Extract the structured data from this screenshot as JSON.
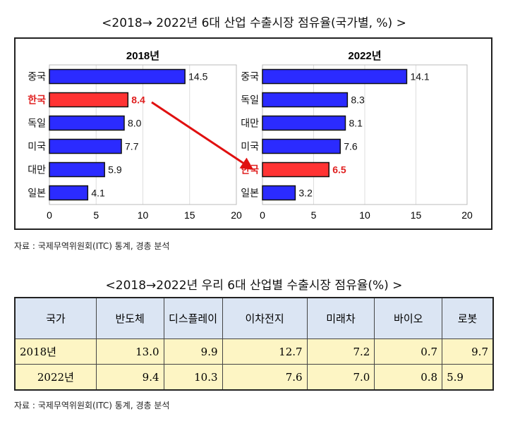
{
  "title": "<2018→ 2022년 6대 산업 수출시장 점유율(국가별, %) >",
  "chart_data": [
    {
      "type": "bar",
      "orientation": "horizontal",
      "title": "2018년",
      "categories": [
        "중국",
        "한국",
        "독일",
        "미국",
        "대만",
        "일본"
      ],
      "values": [
        14.5,
        8.4,
        8.0,
        7.7,
        5.9,
        4.1
      ],
      "highlight": "한국",
      "xlim": [
        0,
        20
      ],
      "xticks": [
        "0",
        "5",
        "10",
        "15",
        "20"
      ],
      "grid": true
    },
    {
      "type": "bar",
      "orientation": "horizontal",
      "title": "2022년",
      "categories": [
        "중국",
        "독일",
        "대만",
        "미국",
        "한국",
        "일본"
      ],
      "values": [
        14.1,
        8.3,
        8.1,
        7.6,
        6.5,
        3.2
      ],
      "highlight": "한국",
      "xlim": [
        0,
        20
      ],
      "xticks": [
        "0",
        "5",
        "10",
        "15",
        "20"
      ],
      "grid": true
    },
    {
      "type": "table",
      "title": "<2018→2022년 우리 6대 산업별 수출시장 점유율(%) >",
      "columns": [
        "국가",
        "반도체",
        "디스플레이",
        "이차전지",
        "미래차",
        "바이오",
        "로봇"
      ],
      "rows": [
        [
          "2018년",
          "13.0",
          "9.9",
          "12.7",
          "7.2",
          "0.7",
          "9.7"
        ],
        [
          "2022년",
          "9.4",
          "10.3",
          "7.6",
          "7.0",
          "0.8",
          "5.9"
        ]
      ]
    }
  ],
  "colors": {
    "bar": "#2b2bff",
    "highlight": "#ff3333",
    "highlight_text": "#e02020",
    "arrow": "#e01010",
    "header_bg": "#dbe5f3",
    "row_bg": "#fdf5c4"
  },
  "source1": "자료 : 국제무역위원회(ITC) 통계, 경총 분석",
  "title2": "<2018→2022년 우리 6대 산업별 수출시장 점유율(%) >",
  "source2": "자료 : 국제무역위원회(ITC) 통계, 경총 분석"
}
